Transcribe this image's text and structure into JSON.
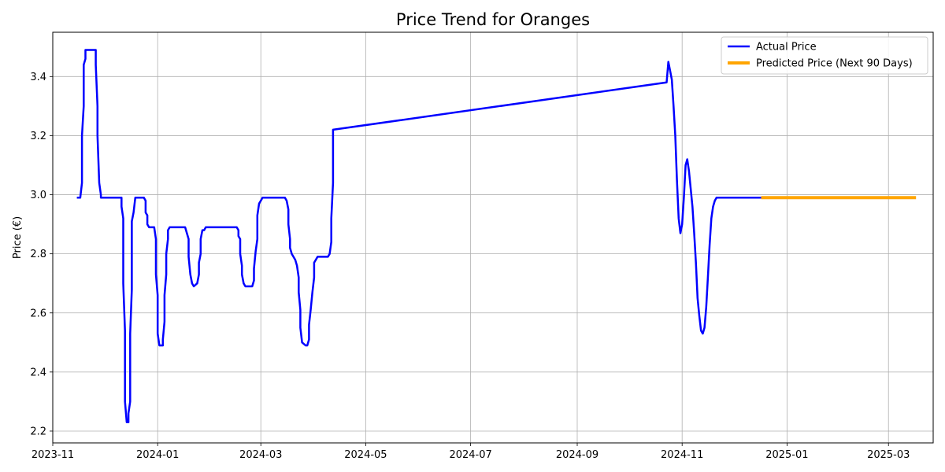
{
  "chart_data": {
    "type": "line",
    "title": "Price Trend for Oranges",
    "xlabel": "",
    "ylabel": "Price (€)",
    "grid": true,
    "legend_position": "top-right",
    "ylim": [
      2.16,
      3.55
    ],
    "xlim": [
      "2023-11-01",
      "2025-03-27"
    ],
    "x_ticks": [
      "2023-11",
      "2024-01",
      "2024-03",
      "2024-05",
      "2024-07",
      "2024-09",
      "2024-11",
      "2025-01",
      "2025-03"
    ],
    "y_ticks": [
      "2.2",
      "2.4",
      "2.6",
      "2.8",
      "3.0",
      "3.2",
      "3.4"
    ],
    "series": [
      {
        "name": "Actual Price",
        "color": "#0000ff",
        "points": [
          [
            "2023-11-15",
            2.99
          ],
          [
            "2023-11-17",
            2.99
          ],
          [
            "2023-11-18",
            3.04
          ],
          [
            "2023-11-18",
            3.2
          ],
          [
            "2023-11-19",
            3.3
          ],
          [
            "2023-11-19",
            3.44
          ],
          [
            "2023-11-20",
            3.46
          ],
          [
            "2023-11-20",
            3.49
          ],
          [
            "2023-11-26",
            3.49
          ],
          [
            "2023-11-26",
            3.44
          ],
          [
            "2023-11-27",
            3.3
          ],
          [
            "2023-11-27",
            3.2
          ],
          [
            "2023-11-28",
            3.04
          ],
          [
            "2023-11-29",
            3.0
          ],
          [
            "2023-11-29",
            2.99
          ],
          [
            "2023-12-10",
            2.99
          ],
          [
            "2023-12-11",
            2.99
          ],
          [
            "2023-12-11",
            2.96
          ],
          [
            "2023-12-12",
            2.92
          ],
          [
            "2023-12-12",
            2.7
          ],
          [
            "2023-12-13",
            2.54
          ],
          [
            "2023-12-13",
            2.3
          ],
          [
            "2023-12-14",
            2.23
          ],
          [
            "2023-12-15",
            2.23
          ],
          [
            "2023-12-15",
            2.26
          ],
          [
            "2023-12-16",
            2.3
          ],
          [
            "2023-12-16",
            2.53
          ],
          [
            "2023-12-17",
            2.68
          ],
          [
            "2023-12-17",
            2.91
          ],
          [
            "2023-12-18",
            2.94
          ],
          [
            "2023-12-19",
            2.99
          ],
          [
            "2023-12-24",
            2.99
          ],
          [
            "2023-12-25",
            2.98
          ],
          [
            "2023-12-25",
            2.94
          ],
          [
            "2023-12-26",
            2.93
          ],
          [
            "2023-12-26",
            2.9
          ],
          [
            "2023-12-27",
            2.89
          ],
          [
            "2023-12-30",
            2.89
          ],
          [
            "2023-12-31",
            2.85
          ],
          [
            "2023-12-31",
            2.73
          ],
          [
            "2024-01-01",
            2.66
          ],
          [
            "2024-01-01",
            2.53
          ],
          [
            "2024-01-02",
            2.49
          ],
          [
            "2024-01-04",
            2.49
          ],
          [
            "2024-01-04",
            2.51
          ],
          [
            "2024-01-05",
            2.57
          ],
          [
            "2024-01-05",
            2.66
          ],
          [
            "2024-01-06",
            2.73
          ],
          [
            "2024-01-06",
            2.8
          ],
          [
            "2024-01-07",
            2.85
          ],
          [
            "2024-01-07",
            2.88
          ],
          [
            "2024-01-08",
            2.89
          ],
          [
            "2024-01-17",
            2.89
          ],
          [
            "2024-01-18",
            2.87
          ],
          [
            "2024-01-19",
            2.85
          ],
          [
            "2024-01-19",
            2.79
          ],
          [
            "2024-01-20",
            2.73
          ],
          [
            "2024-01-21",
            2.7
          ],
          [
            "2024-01-22",
            2.69
          ],
          [
            "2024-01-24",
            2.7
          ],
          [
            "2024-01-25",
            2.73
          ],
          [
            "2024-01-25",
            2.77
          ],
          [
            "2024-01-26",
            2.8
          ],
          [
            "2024-01-26",
            2.85
          ],
          [
            "2024-01-27",
            2.88
          ],
          [
            "2024-01-28",
            2.88
          ],
          [
            "2024-01-29",
            2.89
          ],
          [
            "2024-02-16",
            2.89
          ],
          [
            "2024-02-17",
            2.88
          ],
          [
            "2024-02-17",
            2.86
          ],
          [
            "2024-02-18",
            2.85
          ],
          [
            "2024-02-18",
            2.8
          ],
          [
            "2024-02-19",
            2.76
          ],
          [
            "2024-02-19",
            2.73
          ],
          [
            "2024-02-20",
            2.7
          ],
          [
            "2024-02-21",
            2.69
          ],
          [
            "2024-02-25",
            2.69
          ],
          [
            "2024-02-26",
            2.71
          ],
          [
            "2024-02-26",
            2.75
          ],
          [
            "2024-02-27",
            2.81
          ],
          [
            "2024-02-28",
            2.85
          ],
          [
            "2024-02-28",
            2.93
          ],
          [
            "2024-02-29",
            2.97
          ],
          [
            "2024-03-01",
            2.98
          ],
          [
            "2024-03-02",
            2.99
          ],
          [
            "2024-03-15",
            2.99
          ],
          [
            "2024-03-16",
            2.98
          ],
          [
            "2024-03-17",
            2.95
          ],
          [
            "2024-03-17",
            2.9
          ],
          [
            "2024-03-18",
            2.85
          ],
          [
            "2024-03-18",
            2.82
          ],
          [
            "2024-03-19",
            2.8
          ],
          [
            "2024-03-21",
            2.78
          ],
          [
            "2024-03-22",
            2.76
          ],
          [
            "2024-03-23",
            2.72
          ],
          [
            "2024-03-23",
            2.67
          ],
          [
            "2024-03-24",
            2.61
          ],
          [
            "2024-03-24",
            2.55
          ],
          [
            "2024-03-25",
            2.5
          ],
          [
            "2024-03-27",
            2.49
          ],
          [
            "2024-03-28",
            2.49
          ],
          [
            "2024-03-29",
            2.51
          ],
          [
            "2024-03-29",
            2.56
          ],
          [
            "2024-03-30",
            2.61
          ],
          [
            "2024-03-31",
            2.67
          ],
          [
            "2024-04-01",
            2.72
          ],
          [
            "2024-04-01",
            2.77
          ],
          [
            "2024-04-02",
            2.78
          ],
          [
            "2024-04-03",
            2.79
          ],
          [
            "2024-04-09",
            2.79
          ],
          [
            "2024-04-10",
            2.8
          ],
          [
            "2024-04-11",
            2.84
          ],
          [
            "2024-04-11",
            2.92
          ],
          [
            "2024-04-12",
            3.04
          ],
          [
            "2024-04-12",
            3.22
          ],
          [
            "2024-10-23",
            3.38
          ],
          [
            "2024-10-24",
            3.45
          ],
          [
            "2024-10-25",
            3.42
          ],
          [
            "2024-10-26",
            3.39
          ],
          [
            "2024-10-27",
            3.3
          ],
          [
            "2024-10-28",
            3.2
          ],
          [
            "2024-10-29",
            3.05
          ],
          [
            "2024-10-30",
            2.92
          ],
          [
            "2024-10-31",
            2.87
          ],
          [
            "2024-11-01",
            2.9
          ],
          [
            "2024-11-02",
            2.99
          ],
          [
            "2024-11-03",
            3.1
          ],
          [
            "2024-11-04",
            3.12
          ],
          [
            "2024-11-05",
            3.08
          ],
          [
            "2024-11-06",
            3.02
          ],
          [
            "2024-11-07",
            2.96
          ],
          [
            "2024-11-08",
            2.87
          ],
          [
            "2024-11-09",
            2.77
          ],
          [
            "2024-11-10",
            2.65
          ],
          [
            "2024-11-11",
            2.59
          ],
          [
            "2024-11-12",
            2.54
          ],
          [
            "2024-11-13",
            2.53
          ],
          [
            "2024-11-14",
            2.55
          ],
          [
            "2024-11-15",
            2.62
          ],
          [
            "2024-11-16",
            2.72
          ],
          [
            "2024-11-17",
            2.83
          ],
          [
            "2024-11-18",
            2.92
          ],
          [
            "2024-11-19",
            2.96
          ],
          [
            "2024-11-20",
            2.98
          ],
          [
            "2024-11-21",
            2.99
          ],
          [
            "2024-11-23",
            2.99
          ],
          [
            "2024-12-17",
            2.99
          ]
        ]
      },
      {
        "name": "Predicted Price (Next 90 Days)",
        "color": "#ffa500",
        "points": [
          [
            "2024-12-17",
            2.99
          ],
          [
            "2025-03-17",
            2.99
          ]
        ]
      }
    ]
  }
}
